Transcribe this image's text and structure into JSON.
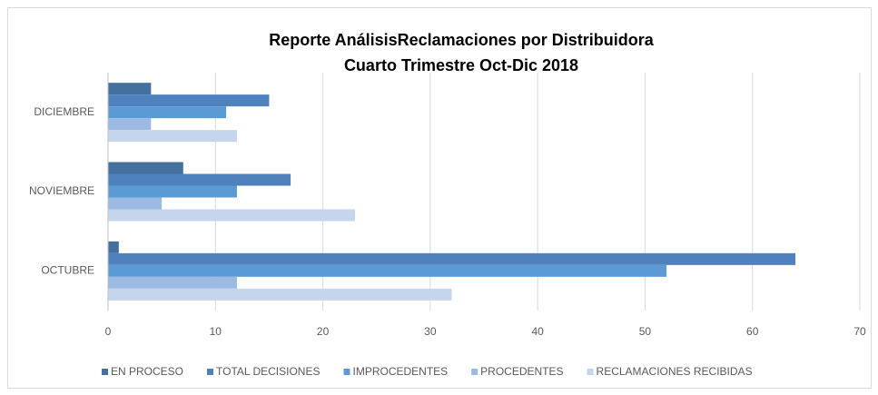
{
  "chart_data": {
    "type": "hbar",
    "title": "Reporte AnálisisReclamaciones por Distribuidora",
    "subtitle": "Cuarto  Trimestre Oct-Dic 2018",
    "categories": [
      "OCTUBRE",
      "NOVIEMBRE",
      "DICIEMBRE"
    ],
    "series": [
      {
        "name": "EN PROCESO",
        "color": "#44709d",
        "values": [
          1,
          7,
          4
        ]
      },
      {
        "name": "TOTAL DECISIONES",
        "color": "#4f81bd",
        "values": [
          64,
          17,
          15
        ]
      },
      {
        "name": "IMPROCEDENTES",
        "color": "#5b9bd5",
        "values": [
          52,
          12,
          11
        ]
      },
      {
        "name": "PROCEDENTES",
        "color": "#9bb9e1",
        "values": [
          12,
          5,
          4
        ]
      },
      {
        "name": "RECLAMACIONES RECIBIDAS",
        "color": "#c4d5ec",
        "values": [
          32,
          23,
          12
        ]
      }
    ],
    "xlim": [
      0,
      70
    ],
    "xticks": [
      0,
      10,
      20,
      30,
      40,
      50,
      60,
      70
    ],
    "grid": true,
    "legend": "bottom"
  }
}
